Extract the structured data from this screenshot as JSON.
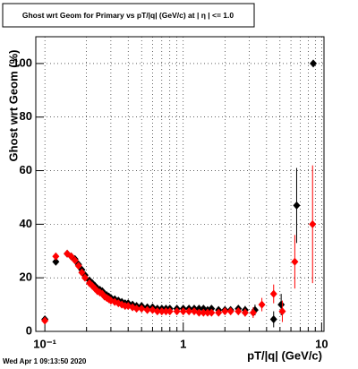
{
  "chart_data": {
    "type": "scatter",
    "title": "Ghost wrt Geom for Primary vs pT/|q| (GeV/c) at | η | <= 1.0",
    "x_label": "pT/|q| (GeV/c)",
    "y_label": "Ghost wrt Geom (%)",
    "timestamp": "Wed Apr  1 09:13:50 2020",
    "xlog": true,
    "grid": true,
    "xlim": [
      0.086,
      10.4
    ],
    "ylim": [
      0,
      110
    ],
    "xticks": [
      {
        "value": 0.1,
        "label": "10⁻¹"
      },
      1,
      10
    ],
    "xminor_ticks": [
      0.2,
      0.3,
      0.4,
      0.5,
      0.6,
      0.7,
      0.8,
      0.9,
      2,
      3,
      4,
      5,
      6,
      7,
      8,
      9
    ],
    "yticks": [
      0,
      20,
      40,
      60,
      80,
      100
    ],
    "series": [
      {
        "color": "#000000",
        "x": [
          0.1,
          0.12,
          0.145,
          0.155,
          0.165,
          0.175,
          0.185,
          0.195,
          0.21,
          0.22,
          0.23,
          0.24,
          0.25,
          0.26,
          0.27,
          0.28,
          0.29,
          0.3,
          0.32,
          0.34,
          0.36,
          0.38,
          0.4,
          0.43,
          0.46,
          0.5,
          0.55,
          0.6,
          0.65,
          0.7,
          0.75,
          0.8,
          0.9,
          1.0,
          1.1,
          1.2,
          1.3,
          1.4,
          1.5,
          1.6,
          1.8,
          2.0,
          2.2,
          2.5,
          2.8,
          3.3,
          4.5,
          5.1,
          6.6,
          8.7
        ],
        "values": [
          4.5,
          26,
          29,
          28,
          27,
          25,
          23,
          21,
          19,
          18,
          17,
          16,
          15.5,
          15,
          14,
          13.5,
          13,
          12.5,
          12,
          11.5,
          11,
          10.5,
          10.5,
          10,
          9.5,
          9.5,
          9,
          9,
          8.5,
          8.5,
          8.5,
          8.5,
          8.5,
          8.5,
          8.5,
          8.5,
          8.5,
          8.5,
          8,
          8.5,
          8,
          8,
          8,
          8.5,
          8,
          8,
          4.5,
          10,
          47,
          100
        ],
        "errors": [
          0.8,
          1,
          1,
          0.8,
          0.8,
          0.7,
          0.7,
          0.7,
          0.6,
          0.6,
          0.6,
          0.6,
          0.6,
          0.5,
          0.5,
          0.5,
          0.5,
          0.5,
          0.5,
          0.5,
          0.5,
          0.5,
          0.5,
          0.5,
          0.5,
          0.5,
          0.5,
          0.5,
          0.5,
          0.5,
          0.5,
          0.5,
          0.5,
          0.5,
          0.6,
          0.6,
          0.6,
          0.7,
          0.7,
          0.8,
          0.8,
          0.9,
          1,
          1.2,
          1.5,
          2,
          3,
          4,
          14,
          0
        ]
      },
      {
        "color": "#ff0000",
        "x": [
          0.1,
          0.12,
          0.145,
          0.155,
          0.165,
          0.175,
          0.185,
          0.195,
          0.21,
          0.22,
          0.23,
          0.24,
          0.25,
          0.26,
          0.27,
          0.28,
          0.29,
          0.3,
          0.32,
          0.34,
          0.36,
          0.38,
          0.4,
          0.43,
          0.46,
          0.5,
          0.55,
          0.6,
          0.65,
          0.7,
          0.75,
          0.8,
          0.9,
          1.0,
          1.1,
          1.2,
          1.3,
          1.4,
          1.5,
          1.6,
          1.8,
          2.0,
          2.2,
          2.5,
          2.8,
          3.2,
          3.7,
          4.5,
          5.2,
          6.4,
          8.6
        ],
        "values": [
          4,
          28,
          29,
          28,
          26.5,
          24.5,
          22,
          20,
          18,
          17,
          16,
          15,
          14.5,
          14,
          13,
          12.5,
          12,
          11.5,
          11,
          10.5,
          10,
          9.5,
          9.5,
          9,
          8.5,
          8.5,
          8,
          8,
          7.5,
          7.5,
          7.5,
          7.5,
          7.5,
          7.5,
          7.5,
          7.5,
          7,
          7,
          7,
          7,
          7,
          7.5,
          7.5,
          7.5,
          7,
          7,
          10,
          14,
          7.5,
          26,
          40
        ],
        "errors": [
          0.8,
          1,
          1,
          0.8,
          0.8,
          0.7,
          0.7,
          0.7,
          0.6,
          0.6,
          0.6,
          0.6,
          0.6,
          0.5,
          0.5,
          0.5,
          0.5,
          0.5,
          0.5,
          0.5,
          0.5,
          0.5,
          0.5,
          0.5,
          0.5,
          0.5,
          0.5,
          0.5,
          0.5,
          0.5,
          0.5,
          0.5,
          0.5,
          0.5,
          0.6,
          0.6,
          0.6,
          0.7,
          0.7,
          0.8,
          0.8,
          0.9,
          1,
          1.2,
          1.5,
          2,
          2.5,
          3.5,
          4,
          10,
          22
        ]
      }
    ]
  }
}
